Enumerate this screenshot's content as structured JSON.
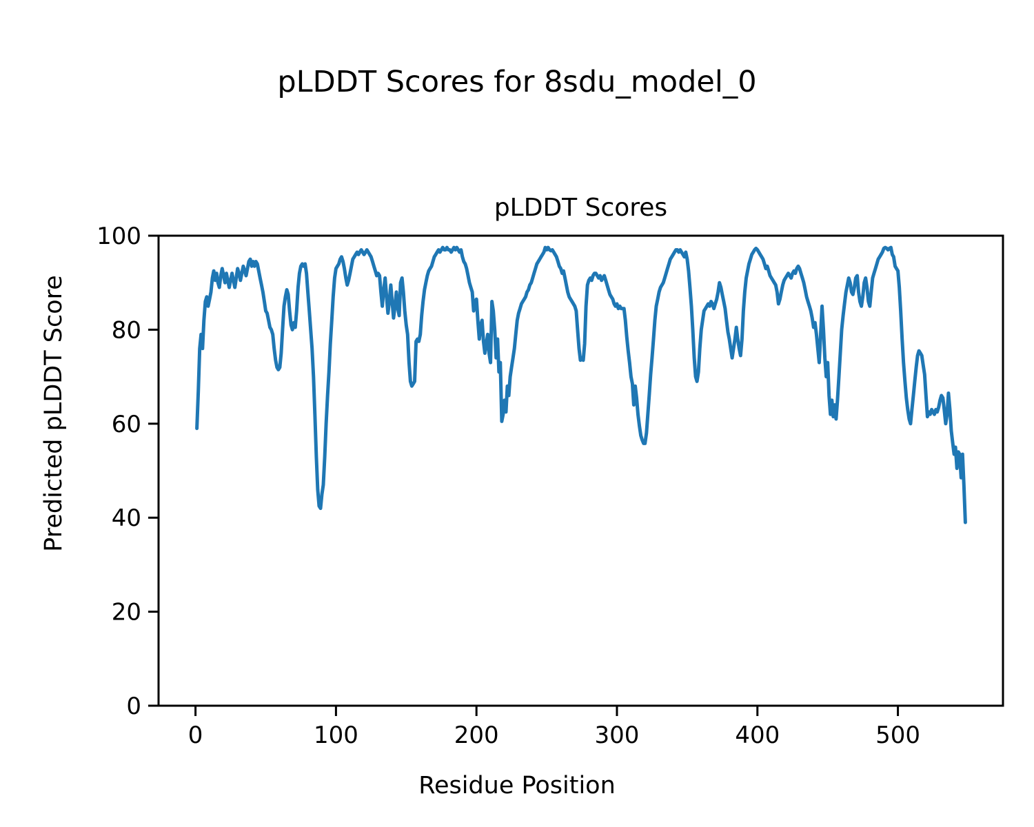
{
  "figure": {
    "suptitle": "pLDDT Scores for 8sdu_model_0",
    "axes_title": "pLDDT Scores",
    "xlabel": "Residue Position",
    "ylabel": "Predicted pLDDT Score"
  },
  "chart_data": {
    "type": "line",
    "title": "pLDDT Scores",
    "suptitle": "pLDDT Scores for 8sdu_model_0",
    "xlabel": "Residue Position",
    "ylabel": "Predicted pLDDT Score",
    "grid": false,
    "legend": null,
    "line_color": "#1f77b4",
    "line_width": 5,
    "x_ticks": [
      0,
      100,
      200,
      300,
      400,
      500
    ],
    "y_ticks": [
      0,
      20,
      40,
      60,
      80,
      100
    ],
    "xlim": [
      -26.3,
      574.8
    ],
    "ylim": [
      0,
      100
    ],
    "series": [
      {
        "name": "pLDDT",
        "x_start": 1,
        "x_step": 1,
        "values": [
          59,
          67,
          76,
          79,
          76,
          82,
          86,
          87,
          85,
          86.5,
          88,
          91,
          92.5,
          90.5,
          92,
          90,
          89,
          91.5,
          93,
          91.5,
          90,
          92,
          90.5,
          89,
          90.5,
          92,
          90.5,
          89,
          91,
          93,
          92,
          90.5,
          92,
          93.5,
          92.5,
          91.5,
          93,
          94.5,
          95,
          93.5,
          94.5,
          93.5,
          94.5,
          94,
          92.5,
          91,
          89.5,
          88,
          86,
          84,
          83.5,
          82,
          80.5,
          80,
          79,
          76,
          73.5,
          72,
          71.5,
          72,
          75,
          80,
          85,
          87,
          88.5,
          87.5,
          84,
          81,
          80,
          81.5,
          80.5,
          84,
          89,
          92,
          93.5,
          94,
          93.5,
          94,
          92,
          88,
          84,
          80,
          76,
          70,
          62,
          53,
          46,
          42.5,
          42,
          45,
          47,
          53,
          60,
          66,
          71,
          77,
          82,
          87,
          91,
          93,
          93.5,
          94,
          95,
          95.5,
          94.5,
          93,
          91,
          89.5,
          90.5,
          92,
          93.5,
          95,
          95.5,
          96,
          96.5,
          96,
          96.5,
          97,
          96.5,
          96,
          96.5,
          97,
          96.5,
          96,
          95.5,
          94.5,
          93.5,
          92.5,
          91.5,
          92,
          91.5,
          88,
          85,
          88.5,
          91,
          87,
          83.5,
          86,
          89.5,
          86,
          82.5,
          85,
          88,
          84.5,
          83,
          90,
          91,
          88,
          84,
          81,
          79,
          73,
          69,
          68,
          68.5,
          69,
          77.5,
          78,
          77.5,
          79,
          83,
          86,
          88.5,
          90,
          91.5,
          92.5,
          93,
          93.5,
          94.5,
          95.5,
          96,
          96.5,
          97,
          96.5,
          97,
          97.5,
          97,
          97,
          97.5,
          97,
          97,
          96.5,
          97,
          97.5,
          97,
          97.5,
          97,
          96.5,
          97,
          95.5,
          94.5,
          94,
          93,
          91.5,
          90,
          89,
          88,
          84,
          86,
          86.5,
          82,
          78,
          81,
          82,
          77.5,
          75,
          77,
          79,
          75,
          73,
          86,
          84,
          80,
          74,
          78,
          71,
          73,
          60.5,
          62,
          65,
          62.5,
          68,
          66,
          70,
          72,
          74,
          76,
          79,
          82,
          83.5,
          84.5,
          85.5,
          86,
          86.5,
          87,
          88,
          88.5,
          89.5,
          90,
          91,
          92,
          93,
          94,
          94.5,
          95,
          95.5,
          96,
          96.5,
          97.5,
          97,
          97.5,
          97,
          96.8,
          97,
          96.5,
          96,
          95.5,
          94.5,
          93.5,
          93,
          92,
          92.5,
          91,
          89.5,
          88,
          87,
          86.5,
          86,
          85.5,
          85,
          84,
          80,
          76,
          73.5,
          74,
          73.5,
          77,
          85,
          89.5,
          90.5,
          91,
          90.5,
          91.5,
          92,
          92,
          91.5,
          91,
          91.5,
          90.5,
          91,
          91.5,
          90.5,
          89.5,
          88.5,
          87.5,
          87,
          86.5,
          85.5,
          85,
          85.5,
          84.5,
          85,
          84.5,
          84.5,
          84.5,
          82,
          78.5,
          75.5,
          73,
          70,
          68.5,
          64,
          68,
          65.5,
          62,
          59.5,
          57.5,
          56.5,
          55.8,
          55.8,
          58,
          62,
          66,
          70.5,
          74,
          78,
          82,
          85,
          86.5,
          88,
          89,
          89.5,
          90,
          91,
          92,
          93,
          94,
          95,
          95.5,
          96,
          96.5,
          97,
          97,
          96.5,
          97,
          96.5,
          96,
          95.5,
          96.5,
          95,
          92.5,
          89,
          85,
          80,
          74,
          70,
          69,
          71,
          76,
          80,
          82,
          84,
          84.5,
          85,
          85.5,
          85,
          86,
          85.5,
          84.5,
          85.5,
          86.5,
          88,
          90,
          89,
          87.5,
          86,
          84.5,
          82,
          79.5,
          78,
          76,
          74,
          76,
          78,
          80.5,
          78,
          76,
          74.5,
          78,
          84,
          88,
          91,
          92.5,
          94,
          95,
          96,
          96.5,
          97,
          97.3,
          97,
          96.5,
          96,
          95.5,
          95,
          94,
          93,
          93.5,
          92.5,
          91.5,
          91,
          90.5,
          90,
          89.5,
          88,
          85.5,
          86.5,
          88,
          89.5,
          90.5,
          91,
          91.5,
          92,
          91.5,
          91,
          92,
          92.5,
          92,
          93,
          93.5,
          93,
          92,
          91,
          90,
          88.5,
          87,
          86,
          85,
          84,
          82.5,
          80.5,
          81.5,
          79,
          76,
          73,
          79,
          85,
          80,
          74,
          70,
          73,
          66,
          62,
          65,
          61.5,
          64,
          61,
          65,
          70,
          75,
          80,
          83,
          85.5,
          88,
          89.5,
          91,
          90,
          88,
          87.5,
          89,
          91,
          91.5,
          88,
          86,
          85,
          87,
          90,
          91,
          89,
          86,
          85,
          88,
          91,
          92,
          93,
          94,
          95,
          95.5,
          96,
          96.5,
          97.3,
          97.5,
          97.3,
          97,
          97.3,
          97.5,
          96,
          95.5,
          93.5,
          93,
          92.5,
          89,
          84,
          78,
          73,
          69,
          65.5,
          63,
          61,
          60,
          63,
          66,
          69,
          72,
          74.5,
          75.5,
          75,
          74.5,
          72.5,
          70.5,
          66,
          61.5,
          62.5,
          62,
          63,
          62.5,
          62,
          63,
          62.5,
          63.5,
          65,
          66,
          65.5,
          63,
          60,
          62,
          66.5,
          63,
          58.5,
          56,
          53.5,
          55,
          50.5,
          54,
          53.5,
          48.5,
          53.5,
          47,
          39
        ]
      }
    ]
  }
}
